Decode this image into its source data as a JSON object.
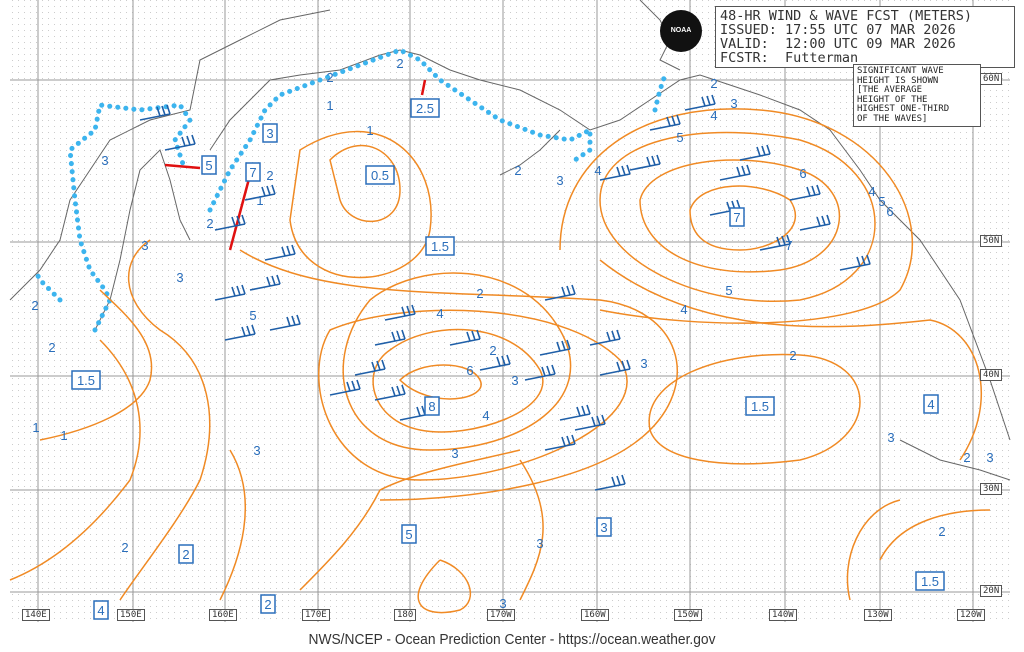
{
  "header": {
    "title": "48-HR WIND & WAVE FCST (METERS)",
    "issued": "ISSUED: 17:55 UTC 07 MAR 2026",
    "valid": "VALID:  12:00 UTC 09 MAR 2026",
    "forecaster": "FCSTR:  Futterman"
  },
  "note": "SIGNIFICANT WAVE\nHEIGHT IS SHOWN\n[THE AVERAGE\nHEIGHT OF THE\nHIGHEST ONE-THIRD\nOF THE WAVES]",
  "logo_text": "NOAA",
  "footer": "NWS/NCEP - Ocean Prediction Center - https://ocean.weather.gov",
  "longitude_labels": [
    "140E",
    "150E",
    "160E",
    "170E",
    "180",
    "170W",
    "160W",
    "150W",
    "140W",
    "130W",
    "120W"
  ],
  "latitude_labels": [
    "60N",
    "50N",
    "40N",
    "30N",
    "20N"
  ],
  "boxed_wave_heights": [
    "3",
    "5",
    "7",
    "0.5",
    "2.5",
    "1.5",
    "7",
    "1.5",
    "8",
    "1.5",
    "4",
    "5",
    "3",
    "2",
    "2",
    "4",
    "1.5"
  ],
  "contour_labels": [
    "2",
    "3",
    "4",
    "1",
    "2",
    "3",
    "3",
    "6",
    "4",
    "5",
    "2",
    "3",
    "1",
    "1",
    "2",
    "2",
    "2",
    "3",
    "4",
    "5",
    "6",
    "7",
    "5",
    "4",
    "3",
    "2",
    "3",
    "2",
    "2",
    "3",
    "4",
    "5",
    "6",
    "4",
    "3",
    "2",
    "3",
    "3",
    "2",
    "1",
    "2",
    "1",
    "3",
    "2",
    "2",
    "3"
  ],
  "colors": {
    "contour": "#f08a24",
    "wave_label": "#2a6ebb",
    "barb": "#1f5fa8",
    "ice_edge": "#3cb4ee",
    "arrow": "#e01010",
    "coast": "#666666"
  }
}
